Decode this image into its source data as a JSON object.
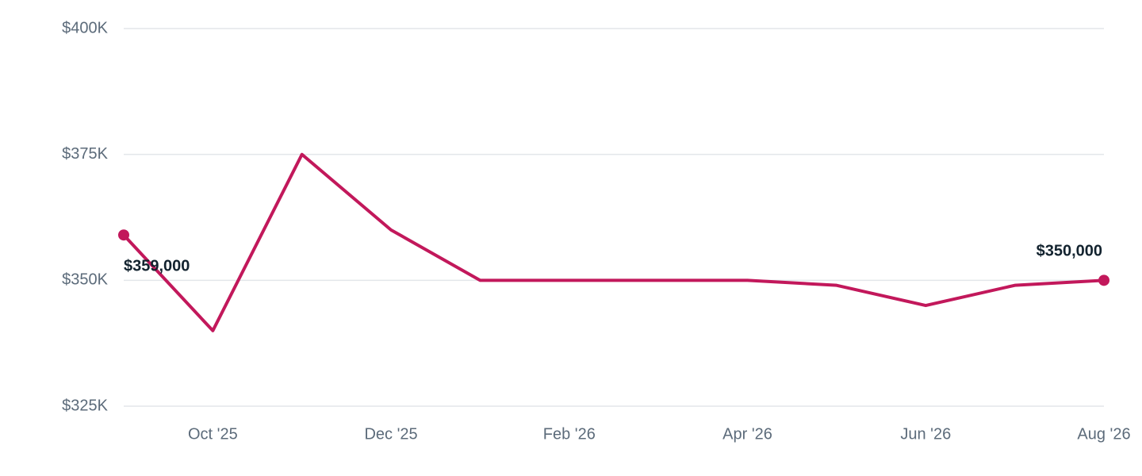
{
  "chart_data": {
    "type": "line",
    "categories": [
      null,
      "Oct '25",
      null,
      "Dec '25",
      null,
      "Feb '26",
      null,
      "Apr '26",
      null,
      "Jun '26",
      null,
      "Aug '26"
    ],
    "series": [
      {
        "color": "#c2185b",
        "values": [
          359000,
          340000,
          375000,
          360000,
          350000,
          350000,
          350000,
          350000,
          349000,
          345000,
          349000,
          350000
        ],
        "value_labels": [
          "$359,000",
          null,
          null,
          null,
          null,
          null,
          null,
          null,
          null,
          null,
          null,
          "$350,000"
        ]
      }
    ],
    "ylim": [
      325000,
      400000
    ],
    "yticks": [
      {
        "value": 325000,
        "label": "$325K"
      },
      {
        "value": 350000,
        "label": "$350K"
      },
      {
        "value": 375000,
        "label": "$375K"
      },
      {
        "value": 400000,
        "label": "$400K"
      }
    ],
    "grid": true
  }
}
